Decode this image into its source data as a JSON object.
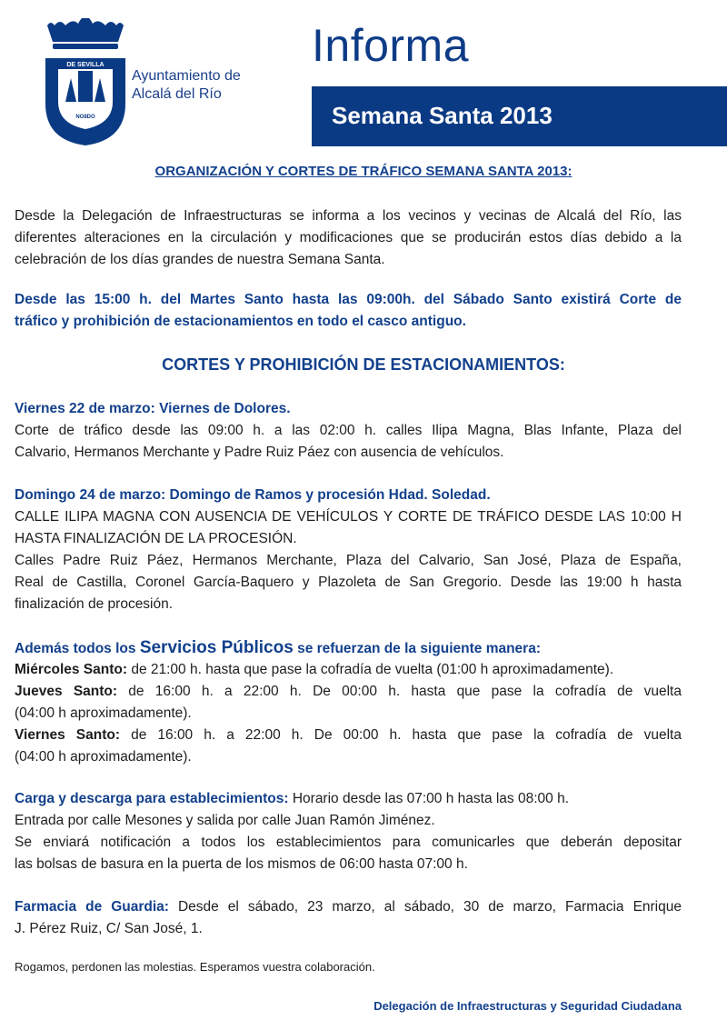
{
  "header": {
    "logo_text": [
      "DE SEVILLA",
      "COLLACION",
      "CALLE",
      "GUARDA",
      "Y",
      "NO8DO"
    ],
    "org_line1": "Ayuntamiento de",
    "org_line2": "Alcalá del Río",
    "title": "Informa",
    "banner": "Semana Santa 2013"
  },
  "colors": {
    "brand_blue": "#0b3a84"
  },
  "doc": {
    "heading1": "ORGANIZACIÓN Y CORTES DE TRÁFICO SEMANA SANTA 2013:",
    "intro": [
      "Desde la Delegación de Infraestructuras se informa a los vecinos y vecinas de Alcalá del Río, las",
      "diferentes alteraciones en la circulación  y modificaciones que se producirán estos días debido a la",
      "celebración de los días grandes de nuestra Semana Santa."
    ],
    "notice": [
      "Desde las 15:00 h. del Martes Santo hasta las 09:00h. del Sábado Santo existirá Corte de",
      "tráfico y prohibición de estacionamientos en todo el casco antiguo."
    ],
    "heading2": "CORTES Y PROHIBICIÓN DE ESTACIONAMIENTOS:",
    "viernes": {
      "title": "Viernes 22 de marzo: Viernes de Dolores.",
      "lines": [
        "Corte de tráfico desde las 09:00 h. a las 02:00 h. calles Ilipa Magna, Blas Infante, Plaza del",
        "Calvario, Hermanos Merchante y Padre Ruiz Páez con ausencia de vehículos."
      ]
    },
    "domingo": {
      "title": "Domingo 24 de marzo: Domingo de Ramos y procesión Hdad. Soledad.",
      "lines": [
        "CALLE ILIPA MAGNA CON AUSENCIA DE VEHÍCULOS Y CORTE DE TRÁFICO DESDE LAS 10:00 H",
        "HASTA FINALIZACIÓN DE LA PROCESIÓN.",
        "Calles Padre Ruiz Páez, Hermanos Merchante, Plaza del Calvario, San José, Plaza de España,",
        "Real de Castilla, Coronel García-Baquero y Plazoleta de San Gregorio. Desde las 19:00 h hasta",
        "finalización de procesión."
      ]
    },
    "servicios": {
      "title_pre": "Además todos los ",
      "title_big": "Servicios Públicos",
      "title_post": " se refuerzan de la siguiente manera:",
      "items": [
        {
          "label": "Miércoles Santo:",
          "text": " de 21:00 h. hasta que pase la cofradía de vuelta (01:00 h aproximadamente)."
        },
        {
          "label": "Jueves Santo:",
          "text": " de 16:00 h. a 22:00 h. De 00:00 h. hasta que pase la cofradía de vuelta",
          "cont": "(04:00 h aproximadamente)."
        },
        {
          "label": "Viernes Santo:",
          "text": " de 16:00 h. a 22:00 h. De 00:00 h. hasta que pase la cofradía de vuelta",
          "cont": "(04:00 h aproximadamente)."
        }
      ]
    },
    "carga": {
      "label": "Carga y descarga para establecimientos:",
      "text": " Horario desde las 07:00 h hasta las 08:00 h.",
      "lines": [
        "Entrada por calle Mesones y salida por calle Juan Ramón Jiménez.",
        "Se enviará notificación a todos los establecimientos para comunicarles que deberán depositar",
        "las bolsas de basura en la puerta de los mismos de 06:00 hasta 07:00 h."
      ]
    },
    "farmacia": {
      "label": "Farmacia de Guardia:",
      "text": " Desde el sábado, 23 marzo, al sábado, 30 de marzo, Farmacia Enrique",
      "cont": "J. Pérez Ruiz, C/ San José, 1."
    },
    "closing": "Rogamos, perdonen las molestias. Esperamos vuestra colaboración.",
    "footer": "Delegación de Infraestructuras y Seguridad Ciudadana"
  }
}
